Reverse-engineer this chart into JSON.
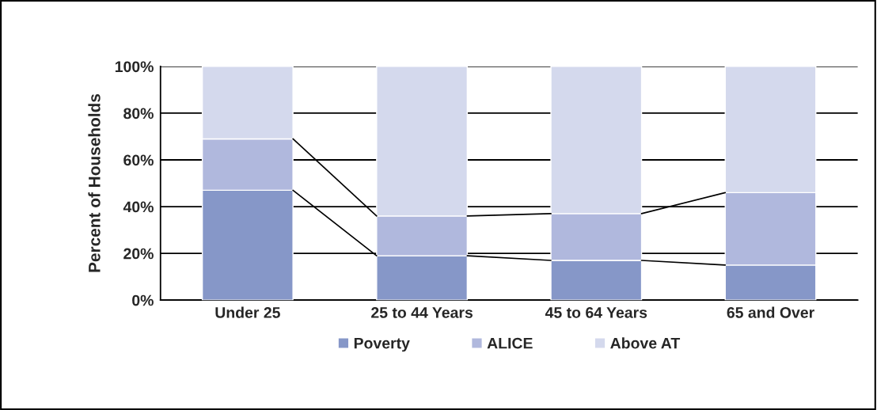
{
  "chart_data": {
    "type": "bar",
    "stacked": true,
    "ylabel": "Percent of Households",
    "categories": [
      "Under 25",
      "25 to 44 Years",
      "45 to 64 Years",
      "65 and Over"
    ],
    "series": [
      {
        "name": "Poverty",
        "color": "#8697c8",
        "values": [
          47,
          19,
          17,
          15
        ]
      },
      {
        "name": "ALICE",
        "color": "#b0b8dd",
        "values": [
          22,
          17,
          20,
          31
        ]
      },
      {
        "name": "Above AT",
        "color": "#d4d9ed",
        "values": [
          31,
          64,
          63,
          54
        ]
      }
    ],
    "ylim": [
      0,
      100
    ],
    "yticks": [
      {
        "value": 0,
        "label": "0%"
      },
      {
        "value": 20,
        "label": "20%"
      },
      {
        "value": 40,
        "label": "40%"
      },
      {
        "value": 60,
        "label": "60%"
      },
      {
        "value": 80,
        "label": "80%"
      },
      {
        "value": 100,
        "label": "100%"
      }
    ],
    "grid": "y",
    "legend": "bottom"
  }
}
